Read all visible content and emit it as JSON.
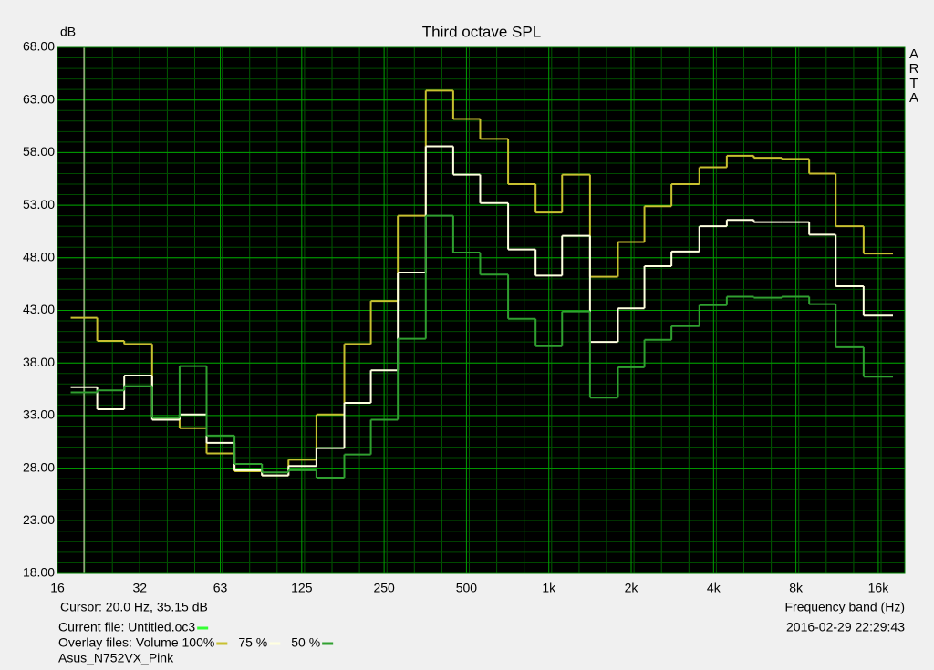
{
  "chart_data": {
    "type": "step",
    "title": "Third octave SPL",
    "y_label": "dB",
    "x_label": "Frequency band (Hz)",
    "brand": "ARTA",
    "log_x": true,
    "grid": true,
    "x": [
      20,
      25,
      31.5,
      40,
      50,
      63,
      80,
      100,
      125,
      160,
      200,
      250,
      315,
      400,
      500,
      630,
      800,
      1000,
      1250,
      1600,
      2000,
      2500,
      3150,
      4000,
      5000,
      6300,
      8000,
      10000,
      12500,
      16000
    ],
    "series": [
      {
        "name": "Volume 100%",
        "color": "#c8c030",
        "values": [
          42.3,
          40.1,
          39.8,
          32.8,
          31.8,
          29.4,
          27.7,
          27.3,
          28.8,
          33.1,
          39.8,
          43.9,
          52.0,
          63.9,
          61.2,
          59.3,
          55.0,
          52.3,
          55.9,
          46.2,
          49.5,
          52.9,
          55.0,
          56.6,
          57.7,
          57.5,
          57.4,
          56.0,
          51.0,
          48.4
        ]
      },
      {
        "name": "75 %",
        "color": "#ffffe0",
        "values": [
          35.7,
          33.6,
          36.8,
          32.6,
          33.1,
          30.4,
          27.8,
          27.3,
          28.2,
          29.9,
          34.2,
          37.3,
          46.6,
          58.6,
          55.9,
          53.2,
          48.8,
          46.3,
          50.1,
          40.0,
          43.2,
          47.2,
          48.6,
          51.0,
          51.6,
          51.4,
          51.4,
          50.2,
          45.3,
          42.5
        ]
      },
      {
        "name": "50 %",
        "color": "#30a030",
        "values": [
          35.2,
          35.4,
          35.8,
          32.8,
          37.7,
          31.1,
          28.4,
          27.6,
          27.8,
          27.1,
          29.3,
          32.6,
          40.3,
          52.0,
          48.5,
          46.4,
          42.2,
          39.6,
          42.9,
          34.7,
          37.6,
          40.2,
          41.5,
          43.5,
          44.3,
          44.2,
          44.3,
          43.6,
          39.5,
          36.7
        ]
      }
    ],
    "xlim": [
      16,
      20000
    ],
    "xticks": [
      16,
      32,
      63,
      125,
      250,
      500,
      {
        "value": 1000,
        "label": "1k"
      },
      {
        "value": 2000,
        "label": "2k"
      },
      {
        "value": 4000,
        "label": "4k"
      },
      {
        "value": 8000,
        "label": "8k"
      },
      {
        "value": 16000,
        "label": "16k"
      }
    ],
    "ylim": [
      18,
      68
    ],
    "yticks": [
      {
        "value": 18,
        "label": "18.00"
      },
      {
        "value": 23,
        "label": "23.00"
      },
      {
        "value": 28,
        "label": "28.00"
      },
      {
        "value": 33,
        "label": "33.00"
      },
      {
        "value": 38,
        "label": "38.00"
      },
      {
        "value": 43,
        "label": "43.00"
      },
      {
        "value": 48,
        "label": "48.00"
      },
      {
        "value": 53,
        "label": "53.00"
      },
      {
        "value": 58,
        "label": "58.00"
      },
      {
        "value": 63,
        "label": "63.00"
      },
      {
        "value": 68,
        "label": "68.00"
      }
    ],
    "cursor": {
      "text": "Cursor:   20.0 Hz, 35.15 dB",
      "x": 20,
      "color": "#f0f0c8"
    },
    "current_file": {
      "label": "Current file: Untitled.oc3",
      "color": "#33ff33"
    },
    "overlay_label": "Overlay files:",
    "timestamp": "2016-02-29  22:29:43",
    "measurement": "Asus_N752VX_Pink"
  }
}
